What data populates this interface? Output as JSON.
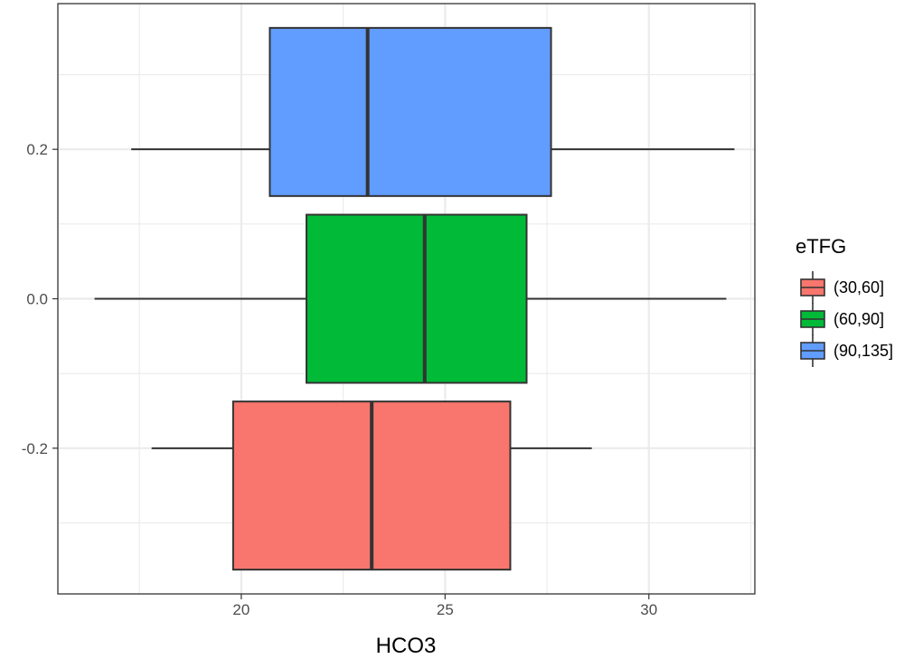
{
  "chart_data": {
    "type": "boxplot",
    "orientation": "horizontal",
    "xlabel": "HCO3",
    "ylabel": "",
    "xlim": [
      15.5,
      32.6
    ],
    "ylim": [
      -0.395,
      0.395
    ],
    "x_ticks": [
      20,
      25,
      30
    ],
    "x_tick_labels": [
      "20",
      "25",
      "30"
    ],
    "y_ticks": [
      -0.2,
      0.0,
      0.2
    ],
    "y_tick_labels": [
      "-0.2",
      "0.0",
      "0.2"
    ],
    "grid": true,
    "legend": {
      "title": "eTFG",
      "position": "right"
    },
    "series": [
      {
        "name": "(30,60]",
        "color": "#F8766D",
        "y_center": -0.2,
        "y_range": [
          -0.3625,
          -0.1375
        ],
        "whisker_low": 17.8,
        "q1": 19.8,
        "median": 23.2,
        "q3": 26.6,
        "whisker_high": 28.6
      },
      {
        "name": "(60,90]",
        "color": "#00BA38",
        "y_center": 0.0,
        "y_range": [
          -0.1125,
          0.1125
        ],
        "whisker_low": 16.4,
        "q1": 21.6,
        "median": 24.5,
        "q3": 27.0,
        "whisker_high": 31.9
      },
      {
        "name": "(90,135]",
        "color": "#619CFF",
        "y_center": 0.2,
        "y_range": [
          0.1375,
          0.3625
        ],
        "whisker_low": 17.3,
        "q1": 20.7,
        "median": 23.1,
        "q3": 27.6,
        "whisker_high": 32.1
      }
    ]
  }
}
